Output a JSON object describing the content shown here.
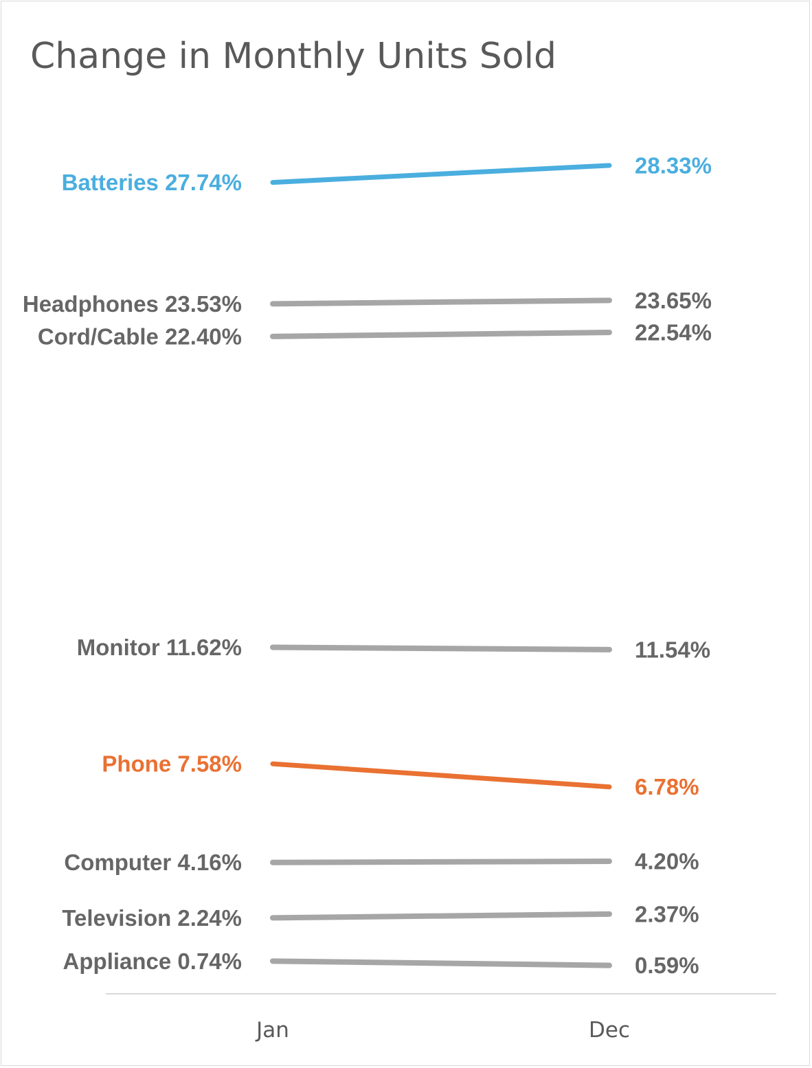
{
  "chart_data": {
    "type": "line",
    "title": "Change in Monthly Units Sold",
    "categories": [
      "Jan",
      "Dec"
    ],
    "highlight_colors": {
      "Batteries": "#4aaedf",
      "Phone": "#e97132",
      "default": "#a6a6a6",
      "default_label": "#666666"
    },
    "series": [
      {
        "name": "Batteries",
        "values": [
          27.74,
          28.33
        ],
        "start_label": "Batteries 27.74%",
        "end_label": "28.33%"
      },
      {
        "name": "Headphones",
        "values": [
          23.53,
          23.65
        ],
        "start_label": "Headphones 23.53%",
        "end_label": "23.65%"
      },
      {
        "name": "Cord/Cable",
        "values": [
          22.4,
          22.54
        ],
        "start_label": "Cord/Cable 22.40%",
        "end_label": "22.54%"
      },
      {
        "name": "Monitor",
        "values": [
          11.62,
          11.54
        ],
        "start_label": "Monitor 11.62%",
        "end_label": "11.54%"
      },
      {
        "name": "Phone",
        "values": [
          7.58,
          6.78
        ],
        "start_label": "Phone 7.58%",
        "end_label": "6.78%"
      },
      {
        "name": "Computer",
        "values": [
          4.16,
          4.2
        ],
        "start_label": "Computer 4.16%",
        "end_label": "4.20%"
      },
      {
        "name": "Television",
        "values": [
          2.24,
          2.37
        ],
        "start_label": "Television 2.24%",
        "end_label": "2.37%"
      },
      {
        "name": "Appliance",
        "values": [
          0.74,
          0.59
        ],
        "start_label": "Appliance 0.74%",
        "end_label": "0.59%"
      }
    ],
    "grid": false,
    "legend": "none"
  }
}
